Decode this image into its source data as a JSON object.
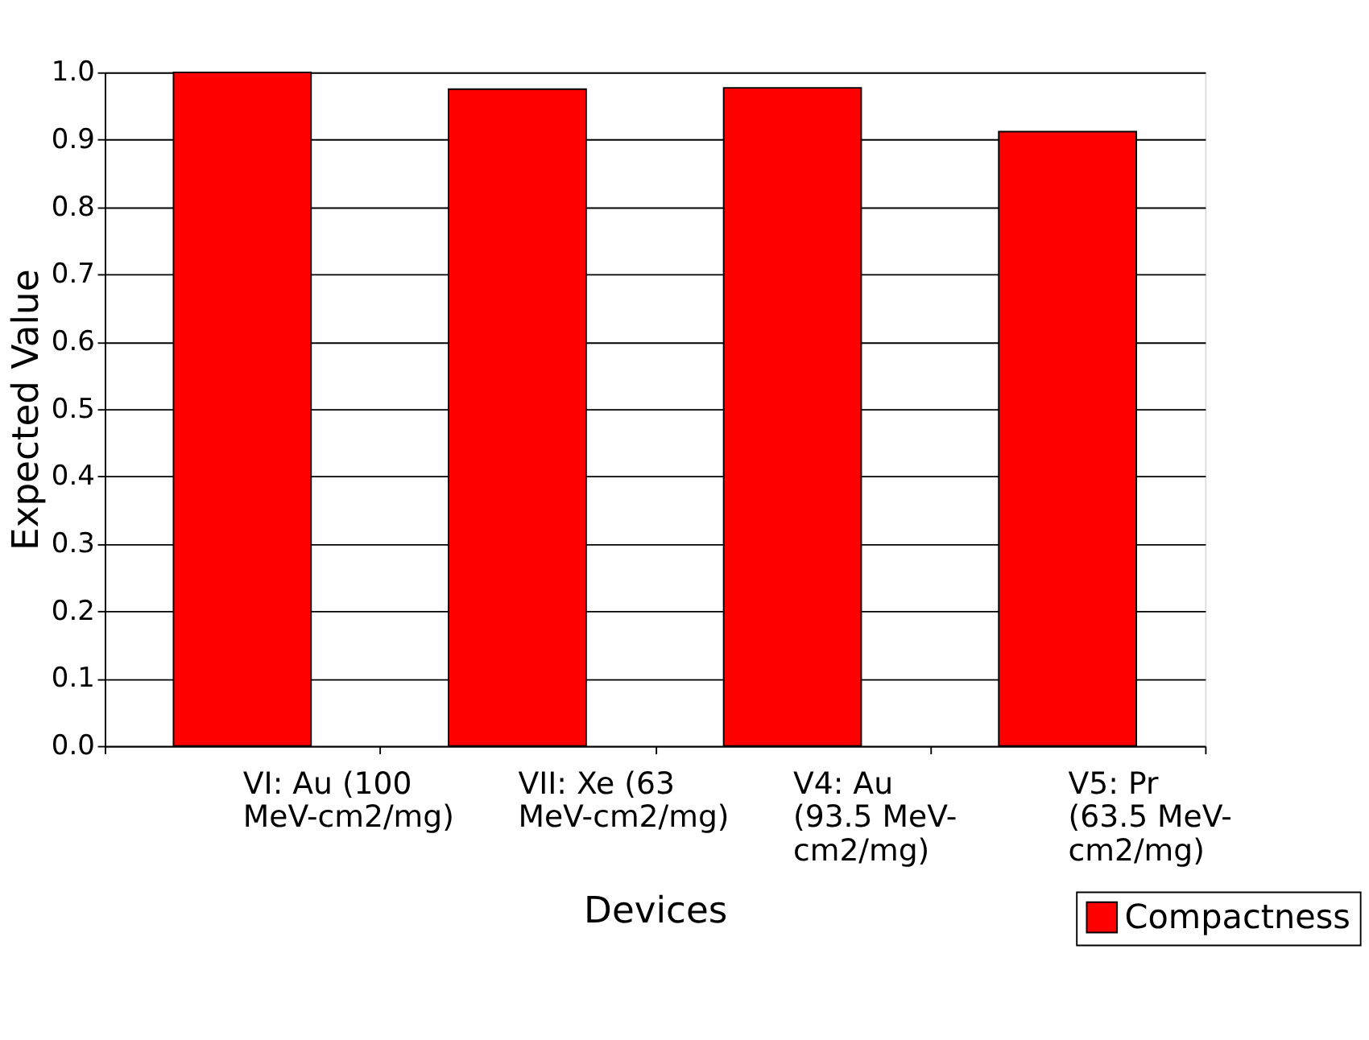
{
  "chart_data": {
    "type": "bar",
    "xlabel": "Devices",
    "ylabel": "Expected Value",
    "categories": [
      "VI: Au (100 MeV-cm2/mg)",
      "VII: Xe (63 MeV-cm2/mg)",
      "V4: Au (93.5 MeV-cm2/mg)",
      "V5: Pr (63.5 MeV-cm2/mg)"
    ],
    "series": [
      {
        "name": "Compactness",
        "color": "#ff0000",
        "values": [
          1.0,
          0.975,
          0.977,
          0.912
        ]
      }
    ],
    "ylim": [
      0,
      1
    ],
    "yticks": [
      {
        "value": 0,
        "label": "0.0"
      },
      {
        "value": 0.1,
        "label": "0.1"
      },
      {
        "value": 0.2,
        "label": "0.2"
      },
      {
        "value": 0.3,
        "label": "0.3"
      },
      {
        "value": 0.4,
        "label": "0.4"
      },
      {
        "value": 0.5,
        "label": "0.5"
      },
      {
        "value": 0.6,
        "label": "0.6"
      },
      {
        "value": 0.7,
        "label": "0.7"
      },
      {
        "value": 0.8,
        "label": "0.8"
      },
      {
        "value": 0.9,
        "label": "0.9"
      },
      {
        "value": 1,
        "label": "1.0"
      }
    ],
    "grid": "y",
    "legend": "bottom right"
  }
}
